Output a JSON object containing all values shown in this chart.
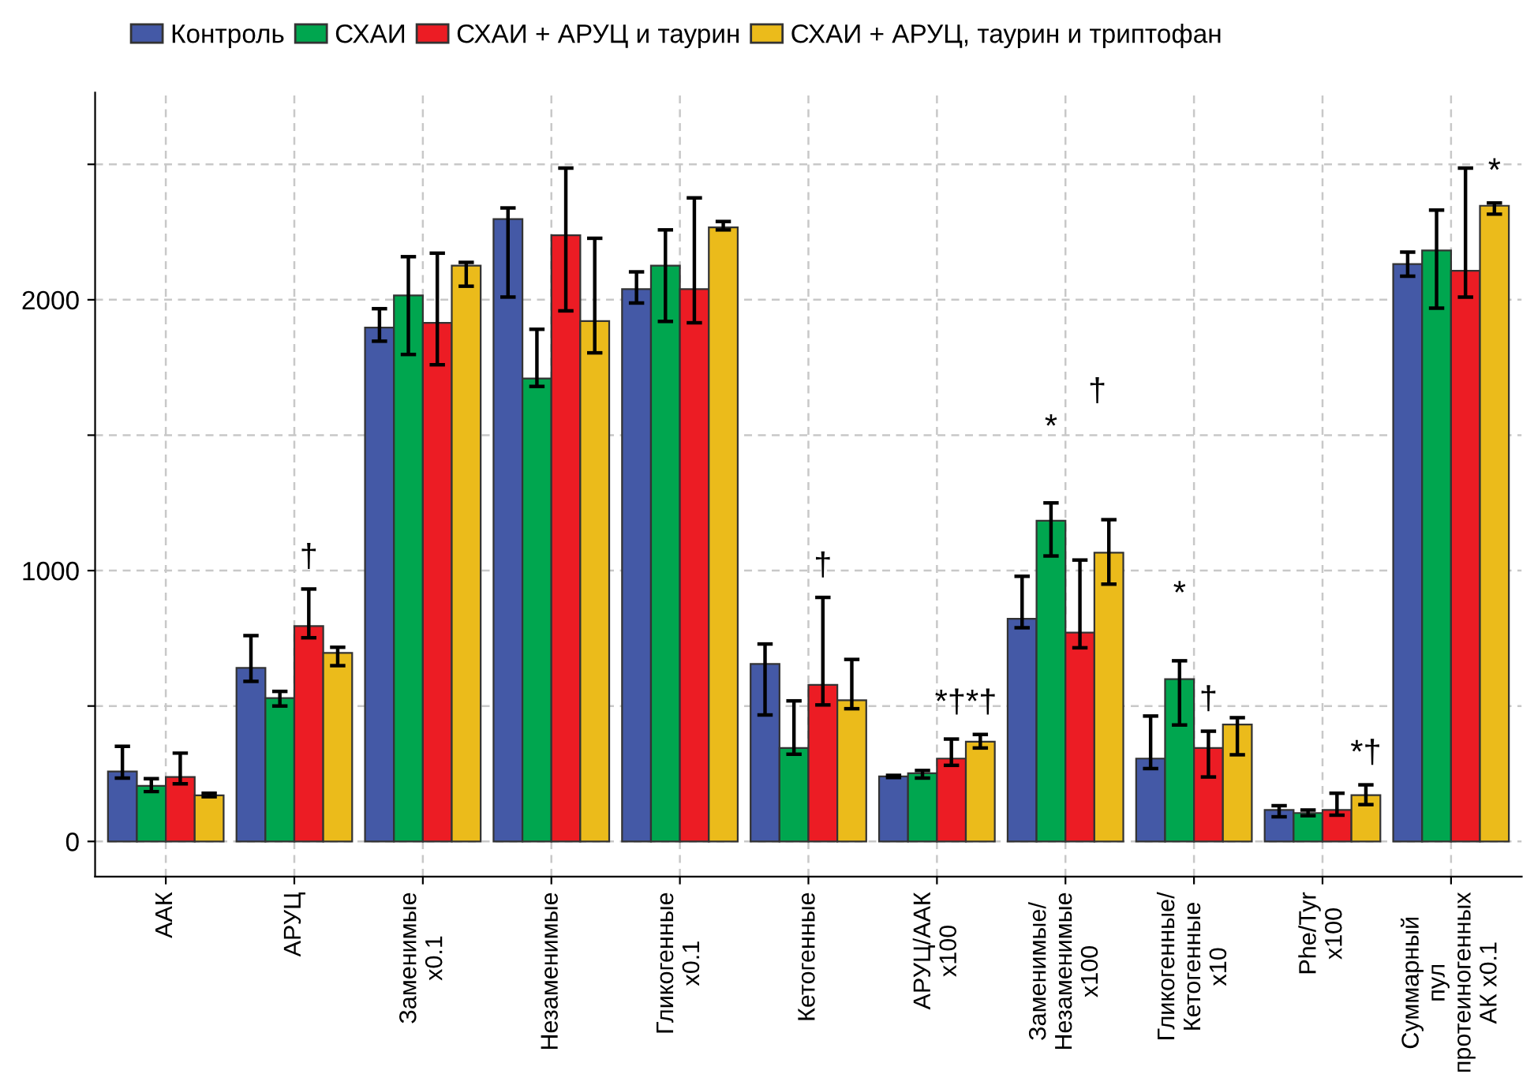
{
  "chart_data": {
    "type": "bar",
    "categories": [
      "ААК",
      "АРУЦ",
      "Заменимые\nx0.1",
      "Незаменимые",
      "Гликогенные\nx0.1",
      "Кетогенные",
      "АРУЦ/ААК\nx100",
      "Заменимые/\nНезаменимые\nx100",
      "Гликогенные/\nКетогенные\nx10",
      "Phe/Tyr\nx100",
      "Суммарный\nпул\nпротеиногенных\nАК x0.1"
    ],
    "series": [
      {
        "name": "Контроль",
        "color": "#4459a6",
        "values": [
          258,
          641,
          1897,
          2298,
          2039,
          655,
          240,
          822,
          306,
          116,
          2132
        ],
        "errors": [
          [
            234,
            351
          ],
          [
            591,
            760
          ],
          [
            1847,
            1967
          ],
          [
            2010,
            2339
          ],
          [
            1988,
            2103
          ],
          [
            467,
            729
          ],
          [
            236,
            244
          ],
          [
            789,
            979
          ],
          [
            269,
            463
          ],
          [
            91,
            132
          ],
          [
            2087,
            2176
          ]
        ]
      },
      {
        "name": "СХАИ",
        "color": "#00a64f",
        "values": [
          205,
          529,
          2016,
          1709,
          2126,
          345,
          252,
          1184,
          599,
          105,
          2182
        ],
        "errors": [
          [
            184,
            232
          ],
          [
            500,
            554
          ],
          [
            1798,
            2159
          ],
          [
            1680,
            1891
          ],
          [
            1920,
            2258
          ],
          [
            322,
            519
          ],
          [
            234,
            262
          ],
          [
            1054,
            1250
          ],
          [
            430,
            667
          ],
          [
            95,
            116
          ],
          [
            1969,
            2331
          ]
        ]
      },
      {
        "name": "СХАИ + АРУЦ и таурин",
        "color": "#ec1c24",
        "values": [
          238,
          795,
          1915,
          2238,
          2039,
          578,
          306,
          771,
          345,
          116,
          2107
        ],
        "errors": [
          [
            213,
            326
          ],
          [
            752,
            932
          ],
          [
            1760,
            2172
          ],
          [
            1959,
            2486
          ],
          [
            1915,
            2376
          ],
          [
            504,
            901
          ],
          [
            281,
            378
          ],
          [
            715,
            1039
          ],
          [
            238,
            407
          ],
          [
            97,
            178
          ],
          [
            2010,
            2486
          ]
        ]
      },
      {
        "name": "СХАИ + АРУЦ, таурин и триптофан",
        "color": "#ebbb1b",
        "values": [
          170,
          696,
          2126,
          1921,
          2267,
          521,
          368,
          1066,
          432,
          171,
          2347
        ],
        "errors": [
          [
            165,
            178
          ],
          [
            649,
            717
          ],
          [
            2050,
            2138
          ],
          [
            1804,
            2227
          ],
          [
            2258,
            2289
          ],
          [
            490,
            672
          ],
          [
            345,
            395
          ],
          [
            950,
            1188
          ],
          [
            320,
            457
          ],
          [
            136,
            209
          ],
          [
            2316,
            2357
          ]
        ]
      }
    ],
    "ylim": [
      -130,
      2765
    ],
    "yticks": [
      0,
      {
        "value": 500,
        "label": null
      },
      1000,
      {
        "value": 1500,
        "label": null
      },
      2000,
      {
        "value": 2500,
        "label": null
      }
    ],
    "grid": true,
    "legend": "top left",
    "annotations": [
      "†",
      "†",
      "*†*†",
      "*",
      "†",
      "*",
      "†",
      "*†",
      "*"
    ]
  }
}
